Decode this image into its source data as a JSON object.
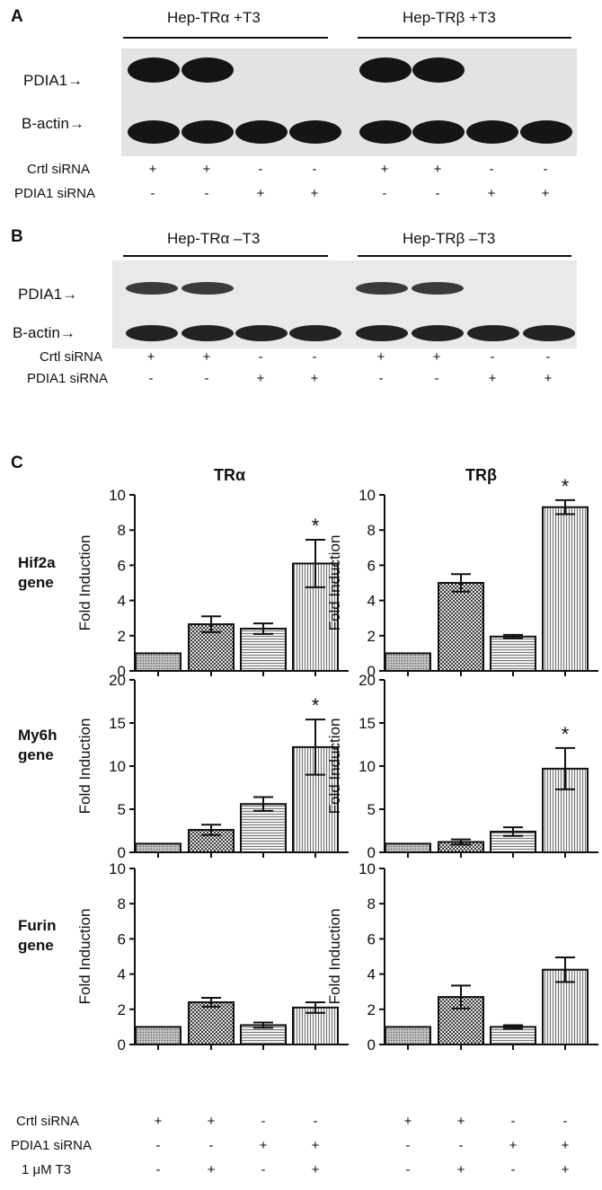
{
  "panel_a": {
    "letter": "A",
    "group_left": "Hep-TRα +T3",
    "group_right": "Hep-TRβ +T3",
    "band_labels": {
      "pdia1": "PDIA1→",
      "actin": "B-actin→"
    },
    "row_labels": [
      "Crtl siRNA",
      "PDIA1 siRNA"
    ],
    "crtl_signs": [
      "+",
      "+",
      "-",
      "-",
      "+",
      "+",
      "-",
      "-"
    ],
    "pdia1_signs": [
      "-",
      "-",
      "+",
      "+",
      "-",
      "-",
      "+",
      "+"
    ],
    "pdia1_band_present": [
      true,
      true,
      false,
      false,
      true,
      true,
      false,
      false
    ]
  },
  "panel_b": {
    "letter": "B",
    "group_left": "Hep-TRα –T3",
    "group_right": "Hep-TRβ –T3",
    "band_labels": {
      "pdia1": "PDIA1→",
      "actin": "B-actin→"
    },
    "row_labels": [
      "Crtl siRNA",
      "PDIA1 siRNA"
    ],
    "crtl_signs": [
      "+",
      "+",
      "-",
      "-",
      "+",
      "+",
      "-",
      "-"
    ],
    "pdia1_signs": [
      "-",
      "-",
      "+",
      "+",
      "-",
      "-",
      "+",
      "+"
    ],
    "pdia1_band_present": [
      true,
      true,
      false,
      false,
      true,
      true,
      false,
      false
    ]
  },
  "panel_c": {
    "letter": "C",
    "col_titles": [
      "TRα",
      "TRβ"
    ],
    "genes": [
      {
        "line1": "Hif2a",
        "line2": "gene"
      },
      {
        "line1": "My6h",
        "line2": "gene"
      },
      {
        "line1": "Furin",
        "line2": "gene"
      }
    ],
    "bottom_rows": {
      "labels": [
        "Crtl siRNA",
        "PDIA1 siRNA",
        "1 μM T3"
      ],
      "crtl": [
        "+",
        "+",
        "-",
        "-"
      ],
      "pdia1": [
        "-",
        "-",
        "+",
        "+"
      ],
      "t3": [
        "-",
        "+",
        "-",
        "+"
      ]
    }
  },
  "chart_data": [
    {
      "type": "bar",
      "title": "TRα",
      "gene": "Hif2a gene",
      "ylabel": "Fold Induction",
      "ylim": [
        0,
        10
      ],
      "yticks": [
        0,
        2,
        4,
        6,
        8,
        10
      ],
      "values": [
        1,
        2.65,
        2.4,
        6.1
      ],
      "errors": [
        0,
        0.45,
        0.3,
        1.35
      ],
      "significant": [
        false,
        false,
        false,
        true
      ]
    },
    {
      "type": "bar",
      "title": "TRβ",
      "gene": "Hif2a gene",
      "ylabel": "Fold Induction",
      "ylim": [
        0,
        10
      ],
      "yticks": [
        0,
        2,
        4,
        6,
        8,
        10
      ],
      "values": [
        1,
        5.0,
        1.95,
        9.3
      ],
      "errors": [
        0,
        0.5,
        0.1,
        0.4
      ],
      "significant": [
        false,
        false,
        false,
        true
      ]
    },
    {
      "type": "bar",
      "title": "TRα",
      "gene": "My6h gene",
      "ylabel": "Fold Induction",
      "ylim": [
        0,
        20
      ],
      "yticks": [
        0,
        5,
        10,
        15,
        20
      ],
      "values": [
        1,
        2.6,
        5.6,
        12.2
      ],
      "errors": [
        0,
        0.6,
        0.8,
        3.2
      ],
      "significant": [
        false,
        false,
        false,
        true
      ]
    },
    {
      "type": "bar",
      "title": "TRβ",
      "gene": "My6h gene",
      "ylabel": "Fold Induction",
      "ylim": [
        0,
        20
      ],
      "yticks": [
        0,
        5,
        10,
        15,
        20
      ],
      "values": [
        1,
        1.2,
        2.4,
        9.7
      ],
      "errors": [
        0,
        0.3,
        0.5,
        2.4
      ],
      "significant": [
        false,
        false,
        false,
        true
      ]
    },
    {
      "type": "bar",
      "title": "TRα",
      "gene": "Furin gene",
      "ylabel": "Fold Induction",
      "ylim": [
        0,
        10
      ],
      "yticks": [
        0,
        2,
        4,
        6,
        8,
        10
      ],
      "values": [
        1,
        2.4,
        1.1,
        2.1
      ],
      "errors": [
        0,
        0.25,
        0.15,
        0.3
      ],
      "significant": [
        false,
        false,
        false,
        false
      ]
    },
    {
      "type": "bar",
      "title": "TRβ",
      "gene": "Furin gene",
      "ylabel": "Fold Induction",
      "ylim": [
        0,
        10
      ],
      "yticks": [
        0,
        2,
        4,
        6,
        8,
        10
      ],
      "values": [
        1,
        2.7,
        1.0,
        4.25
      ],
      "errors": [
        0,
        0.65,
        0.1,
        0.7
      ],
      "significant": [
        false,
        false,
        false,
        false
      ]
    }
  ]
}
